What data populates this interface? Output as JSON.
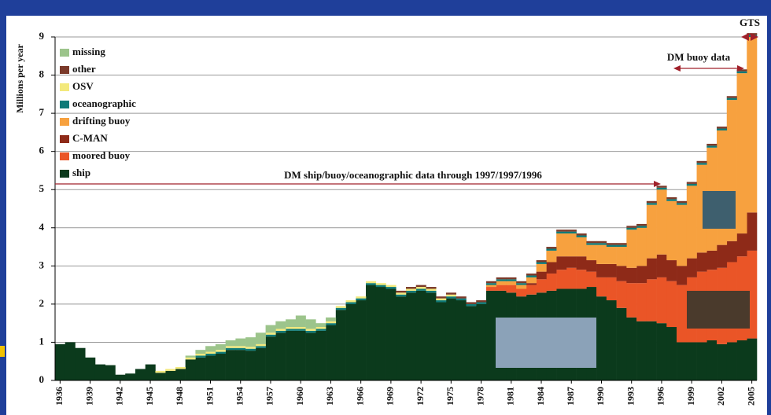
{
  "chart_data": {
    "type": "stacked-step-bar",
    "y_label": "Millions per year",
    "annotations": [
      "DM ship/buoy/oceanographic data through 1997/1997/1996",
      "DM buoy data",
      "GTS"
    ],
    "x": [
      1936,
      1937,
      1938,
      1939,
      1940,
      1941,
      1942,
      1943,
      1944,
      1945,
      1946,
      1947,
      1948,
      1949,
      1950,
      1951,
      1952,
      1953,
      1954,
      1955,
      1956,
      1957,
      1958,
      1959,
      1960,
      1961,
      1962,
      1963,
      1964,
      1965,
      1966,
      1967,
      1968,
      1969,
      1970,
      1971,
      1972,
      1973,
      1974,
      1975,
      1976,
      1977,
      1978,
      1979,
      1980,
      1981,
      1982,
      1983,
      1984,
      1985,
      1986,
      1987,
      1988,
      1989,
      1990,
      1991,
      1992,
      1993,
      1994,
      1995,
      1996,
      1997,
      1998,
      1999,
      2000,
      2001,
      2002,
      2003,
      2004,
      2005
    ],
    "xlim": [
      1935.5,
      2005.5
    ],
    "xticks": [
      1936,
      1939,
      1942,
      1945,
      1948,
      1951,
      1954,
      1957,
      1960,
      1963,
      1966,
      1969,
      1972,
      1975,
      1978,
      1981,
      1984,
      1987,
      1990,
      1993,
      1996,
      1999,
      2002,
      2005
    ],
    "ylim": [
      0,
      9
    ],
    "yticks": [
      0,
      1,
      2,
      3,
      4,
      5,
      6,
      7,
      8,
      9
    ],
    "grid": true,
    "legend": "upper left",
    "series": [
      {
        "name": "ship",
        "color": "#0b3a1c",
        "values": [
          0.95,
          1.0,
          0.85,
          0.6,
          0.42,
          0.4,
          0.15,
          0.18,
          0.3,
          0.42,
          0.2,
          0.25,
          0.3,
          0.55,
          0.6,
          0.65,
          0.7,
          0.8,
          0.8,
          0.78,
          0.85,
          1.15,
          1.25,
          1.3,
          1.3,
          1.25,
          1.3,
          1.45,
          1.85,
          2.0,
          2.1,
          2.5,
          2.45,
          2.4,
          2.2,
          2.3,
          2.35,
          2.3,
          2.05,
          2.15,
          2.1,
          1.95,
          2.0,
          2.35,
          2.35,
          2.3,
          2.2,
          2.25,
          2.3,
          2.35,
          2.4,
          2.4,
          2.4,
          2.45,
          2.2,
          2.1,
          1.9,
          1.65,
          1.55,
          1.55,
          1.5,
          1.4,
          1.0,
          1.0,
          1.0,
          1.05,
          0.95,
          1.0,
          1.05,
          1.1
        ]
      },
      {
        "name": "moored buoy",
        "color": "#ea5527",
        "values": [
          0,
          0,
          0,
          0,
          0,
          0,
          0,
          0,
          0,
          0,
          0,
          0,
          0,
          0,
          0,
          0,
          0,
          0,
          0,
          0,
          0,
          0,
          0,
          0,
          0,
          0,
          0,
          0,
          0,
          0,
          0,
          0,
          0,
          0,
          0,
          0,
          0,
          0,
          0,
          0,
          0,
          0,
          0,
          0.1,
          0.15,
          0.2,
          0.2,
          0.25,
          0.35,
          0.45,
          0.5,
          0.55,
          0.5,
          0.4,
          0.5,
          0.6,
          0.7,
          0.9,
          1.0,
          1.1,
          1.2,
          1.2,
          1.5,
          1.7,
          1.85,
          1.85,
          2.0,
          2.1,
          2.2,
          2.3
        ]
      },
      {
        "name": "C-MAN",
        "color": "#8e2a18",
        "values": [
          0,
          0,
          0,
          0,
          0,
          0,
          0,
          0,
          0,
          0,
          0,
          0,
          0,
          0,
          0,
          0,
          0,
          0,
          0,
          0,
          0,
          0,
          0,
          0,
          0,
          0,
          0,
          0,
          0,
          0,
          0,
          0,
          0,
          0,
          0,
          0,
          0,
          0,
          0,
          0,
          0,
          0,
          0,
          0,
          0,
          0,
          0,
          0.05,
          0.2,
          0.3,
          0.35,
          0.3,
          0.35,
          0.3,
          0.35,
          0.35,
          0.4,
          0.4,
          0.45,
          0.55,
          0.6,
          0.55,
          0.5,
          0.5,
          0.5,
          0.5,
          0.6,
          0.55,
          0.6,
          1.0
        ]
      },
      {
        "name": "drifting buoy",
        "color": "#f7a13f",
        "values": [
          0,
          0,
          0,
          0,
          0,
          0,
          0,
          0,
          0,
          0,
          0,
          0,
          0,
          0,
          0,
          0,
          0,
          0,
          0,
          0,
          0,
          0,
          0,
          0,
          0,
          0,
          0,
          0,
          0,
          0,
          0,
          0,
          0,
          0,
          0,
          0,
          0,
          0,
          0,
          0,
          0,
          0,
          0,
          0.05,
          0.1,
          0.1,
          0.1,
          0.15,
          0.2,
          0.3,
          0.6,
          0.6,
          0.5,
          0.4,
          0.5,
          0.45,
          0.5,
          1.0,
          1.0,
          1.4,
          1.7,
          1.55,
          1.6,
          1.9,
          2.3,
          2.7,
          3.0,
          3.7,
          4.2,
          4.6
        ]
      },
      {
        "name": "oceanographic",
        "color": "#0e7a78",
        "values": [
          0,
          0,
          0,
          0,
          0,
          0,
          0,
          0,
          0,
          0,
          0,
          0,
          0,
          0,
          0.05,
          0.05,
          0.05,
          0.05,
          0.05,
          0.05,
          0.05,
          0.05,
          0.05,
          0.05,
          0.05,
          0.05,
          0.05,
          0.05,
          0.05,
          0.05,
          0.05,
          0.05,
          0.05,
          0.05,
          0.05,
          0.05,
          0.05,
          0.05,
          0.05,
          0.05,
          0.05,
          0.05,
          0.05,
          0.05,
          0.05,
          0.05,
          0.05,
          0.05,
          0.05,
          0.05,
          0.05,
          0.05,
          0.05,
          0.05,
          0.05,
          0.05,
          0.05,
          0.05,
          0.05,
          0.05,
          0.05,
          0.05,
          0.05,
          0.05,
          0.05,
          0.05,
          0.05,
          0.05,
          0.05,
          0.05
        ]
      },
      {
        "name": "OSV",
        "color": "#f3e97c",
        "values": [
          0,
          0,
          0,
          0,
          0,
          0,
          0,
          0,
          0,
          0,
          0.05,
          0.05,
          0.05,
          0.05,
          0.05,
          0.05,
          0.05,
          0.05,
          0.05,
          0.05,
          0.05,
          0.05,
          0.05,
          0.05,
          0.05,
          0.05,
          0.05,
          0.05,
          0.05,
          0.05,
          0.05,
          0.05,
          0.05,
          0.05,
          0.05,
          0.05,
          0.05,
          0.05,
          0.05,
          0.05,
          0,
          0,
          0,
          0,
          0,
          0,
          0,
          0,
          0,
          0,
          0,
          0,
          0,
          0,
          0,
          0,
          0,
          0,
          0,
          0,
          0,
          0,
          0,
          0,
          0,
          0,
          0,
          0,
          0,
          0
        ]
      },
      {
        "name": "other",
        "color": "#7b3a2a",
        "values": [
          0,
          0,
          0,
          0,
          0,
          0,
          0,
          0,
          0,
          0,
          0,
          0,
          0,
          0,
          0,
          0,
          0,
          0,
          0,
          0,
          0,
          0,
          0,
          0,
          0,
          0,
          0,
          0,
          0,
          0,
          0,
          0,
          0,
          0,
          0.05,
          0.05,
          0.05,
          0.05,
          0.05,
          0.05,
          0.05,
          0.05,
          0.05,
          0.05,
          0.05,
          0.05,
          0.05,
          0.05,
          0.05,
          0.05,
          0.05,
          0.05,
          0.05,
          0.05,
          0.05,
          0.05,
          0.05,
          0.05,
          0.05,
          0.05,
          0.05,
          0.05,
          0.05,
          0.05,
          0.05,
          0.05,
          0.05,
          0.05,
          0.05,
          0.05
        ]
      },
      {
        "name": "missing",
        "color": "#9cc48b",
        "values": [
          0,
          0,
          0,
          0,
          0,
          0,
          0,
          0,
          0,
          0,
          0,
          0,
          0,
          0.05,
          0.1,
          0.15,
          0.15,
          0.15,
          0.2,
          0.25,
          0.3,
          0.2,
          0.2,
          0.2,
          0.3,
          0.25,
          0.1,
          0.1,
          0,
          0,
          0,
          0,
          0,
          0,
          0,
          0,
          0,
          0,
          0,
          0,
          0,
          0,
          0,
          0,
          0,
          0,
          0,
          0,
          0,
          0,
          0,
          0,
          0,
          0,
          0,
          0,
          0,
          0,
          0,
          0,
          0,
          0,
          0,
          0,
          0,
          0,
          0,
          0,
          0,
          0
        ]
      }
    ]
  }
}
